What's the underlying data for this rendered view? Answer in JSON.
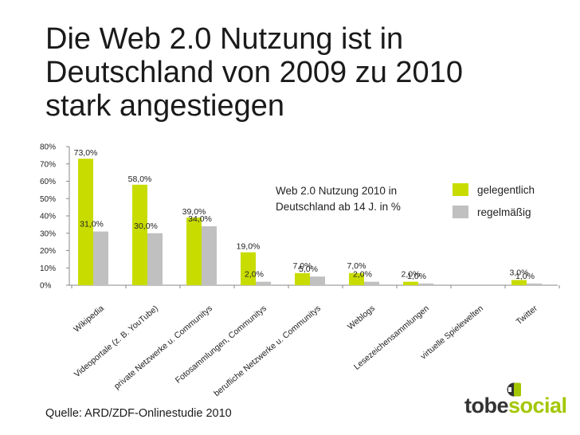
{
  "title": {
    "lines": [
      "Die Web 2.0 Nutzung ist in",
      "Deutschland von 2009 zu 2010",
      "stark angestiegen"
    ]
  },
  "source": "Quelle: ARD/ZDF-Onlinestudie 2010",
  "logo": {
    "part1": "tobe",
    "part2": "social",
    "icon": "logo-mark-icon"
  },
  "colors": {
    "series1": "#c8dc00",
    "series2": "#c0c0c0",
    "axis": "#888888",
    "logo_green": "#a3c700"
  },
  "chart_data": {
    "type": "bar",
    "title": "Web 2.0 Nutzung 2010 in Deutschland ab 14 J. in %",
    "annotation_lines": [
      "Web 2.0 Nutzung 2010  in",
      "Deutschland ab 14 J. in %"
    ],
    "categories": [
      "Wikipedia",
      "Videoportale (z. B. YouTube)",
      "private Netzwerke u. Communitys",
      "Fotosammlungen, Communitys",
      "berufliche Netzwerke u. Communitys",
      "Weblogs",
      "Lesezeichensammlungen",
      "virtuelle Spielewelten",
      "Twitter"
    ],
    "series": [
      {
        "name": "gelegentlich",
        "values": [
          73,
          58,
          39,
          19,
          7,
          7,
          2,
          null,
          3
        ],
        "labels": [
          "73,0%",
          "58,0%",
          "39,0%",
          "19,0%",
          "7,0%",
          "7,0%",
          "2,0%",
          "",
          "3,0%"
        ]
      },
      {
        "name": "regelmäßig",
        "values": [
          31,
          30,
          34,
          2,
          5,
          2,
          1,
          null,
          1
        ],
        "labels": [
          "31,0%",
          "30,0%",
          "34,0%",
          "2,0%",
          "5,0%",
          "2,0%",
          "1,0%",
          "",
          "1,0%"
        ]
      }
    ],
    "ylim": [
      0,
      80
    ],
    "yticks": [
      0,
      10,
      20,
      30,
      40,
      50,
      60,
      70,
      80
    ],
    "ytick_labels": [
      "0%",
      "10%",
      "20%",
      "30%",
      "40%",
      "50%",
      "60%",
      "70%",
      "80%"
    ],
    "xlabel": "",
    "ylabel": "",
    "legend_position": "top-right",
    "grid": false
  }
}
